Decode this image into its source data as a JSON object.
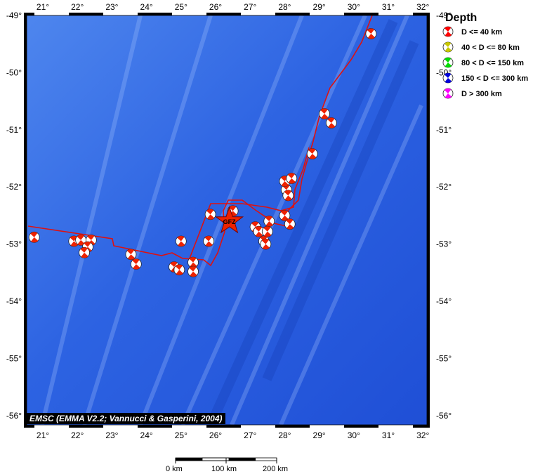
{
  "map": {
    "x_ticks": [
      "21°",
      "22°",
      "23°",
      "24°",
      "25°",
      "26°",
      "27°",
      "28°",
      "29°",
      "30°",
      "31°",
      "32°"
    ],
    "y_ticks_left": [
      "-49°",
      "-50°",
      "-51°",
      "-52°",
      "-53°",
      "-54°",
      "-55°",
      "-56°"
    ],
    "y_ticks_right": [
      "-49°",
      "-50°",
      "-51°",
      "-52°",
      "-53°",
      "-54°",
      "-55°",
      "-56°"
    ],
    "epicenter_label": "GFZ",
    "colors": {
      "ocean": "#2f62e0",
      "ridge": "#dd1111",
      "beachball": "#ee2200",
      "star": "#ee2200"
    }
  },
  "legend": {
    "title": "Depth",
    "items": [
      {
        "label": "D <= 40 km",
        "color": "#ff0000"
      },
      {
        "label": "40 < D <= 80 km",
        "color": "#c8c800"
      },
      {
        "label": "80 < D <= 150 km",
        "color": "#00dd00"
      },
      {
        "label": "150 < D <= 300 km",
        "color": "#0000dd"
      },
      {
        "label": "D > 300 km",
        "color": "#ff00ff"
      }
    ]
  },
  "credit": "EMSC (EMMA V2.2; Vannucci & Gasperini, 2004)",
  "scale": {
    "labels": [
      "0 km",
      "100 km",
      "200 km"
    ]
  },
  "events": [
    {
      "lon": 20.75,
      "lat": -52.88
    },
    {
      "lon": 21.9,
      "lat": -52.95
    },
    {
      "lon": 22.1,
      "lat": -52.93
    },
    {
      "lon": 22.4,
      "lat": -52.93
    },
    {
      "lon": 22.3,
      "lat": -53.05
    },
    {
      "lon": 22.2,
      "lat": -53.15
    },
    {
      "lon": 23.55,
      "lat": -53.18
    },
    {
      "lon": 23.7,
      "lat": -53.35
    },
    {
      "lon": 24.8,
      "lat": -53.4
    },
    {
      "lon": 24.95,
      "lat": -53.45
    },
    {
      "lon": 25.35,
      "lat": -53.32
    },
    {
      "lon": 25.35,
      "lat": -53.48
    },
    {
      "lon": 25.0,
      "lat": -52.95
    },
    {
      "lon": 25.8,
      "lat": -52.95
    },
    {
      "lon": 25.85,
      "lat": -52.48
    },
    {
      "lon": 26.5,
      "lat": -52.42
    },
    {
      "lon": 27.15,
      "lat": -52.7
    },
    {
      "lon": 27.25,
      "lat": -52.78
    },
    {
      "lon": 27.4,
      "lat": -52.95
    },
    {
      "lon": 27.55,
      "lat": -52.6
    },
    {
      "lon": 27.5,
      "lat": -52.78
    },
    {
      "lon": 27.45,
      "lat": -53.0
    },
    {
      "lon": 28.0,
      "lat": -52.5
    },
    {
      "lon": 28.15,
      "lat": -52.65
    },
    {
      "lon": 28.05,
      "lat": -52.05
    },
    {
      "lon": 28.1,
      "lat": -52.15
    },
    {
      "lon": 28.0,
      "lat": -51.9
    },
    {
      "lon": 28.2,
      "lat": -51.85
    },
    {
      "lon": 28.8,
      "lat": -51.42
    },
    {
      "lon": 29.15,
      "lat": -50.72
    },
    {
      "lon": 29.35,
      "lat": -50.88
    },
    {
      "lon": 30.5,
      "lat": -49.32
    }
  ],
  "main_event": {
    "lon": 26.4,
    "lat": -52.6
  }
}
